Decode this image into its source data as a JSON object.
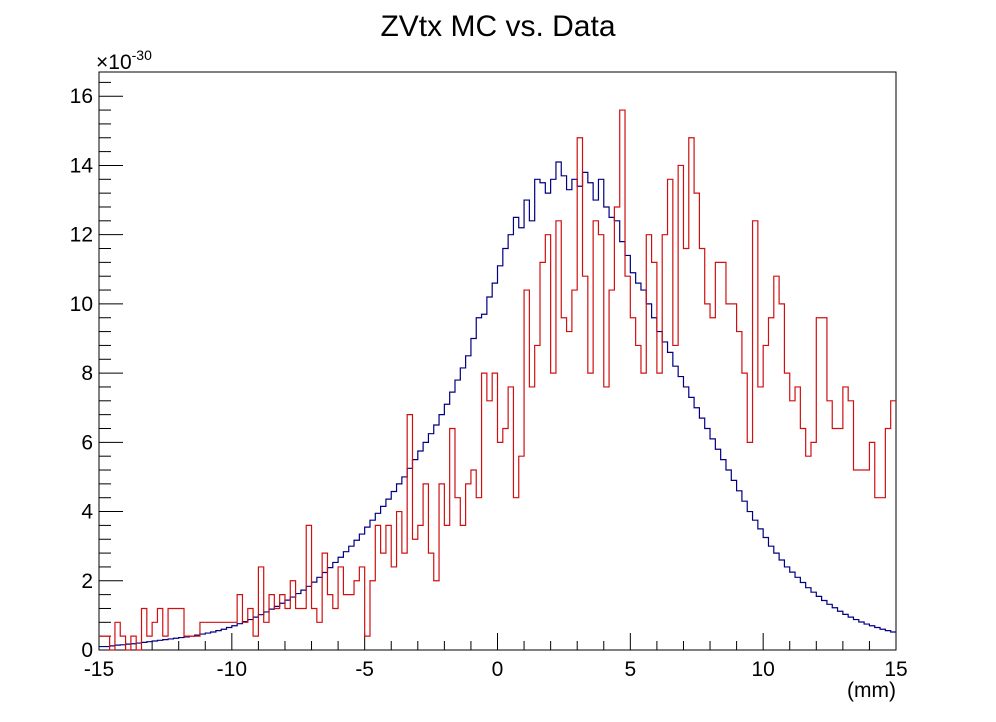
{
  "chart_data": {
    "type": "histogram",
    "title": "ZVtx MC vs. Data",
    "xlabel": "(mm)",
    "ylabel": "",
    "y_multiplier": {
      "base": "×10",
      "exponent": "-30"
    },
    "xlim": [
      -15,
      15
    ],
    "ylim": [
      0,
      16.7
    ],
    "x_ticks": [
      -15,
      -10,
      -5,
      0,
      5,
      10,
      15
    ],
    "y_ticks": [
      0,
      2,
      4,
      6,
      8,
      10,
      12,
      14,
      16
    ],
    "bins": {
      "n": 150,
      "min": -15,
      "max": 15
    },
    "grid": false,
    "legend": "none",
    "series": [
      {
        "color": "#000080",
        "values": [
          0.1,
          0.1,
          0.12,
          0.14,
          0.15,
          0.17,
          0.18,
          0.2,
          0.22,
          0.24,
          0.26,
          0.28,
          0.3,
          0.32,
          0.34,
          0.36,
          0.38,
          0.4,
          0.43,
          0.46,
          0.49,
          0.52,
          0.56,
          0.6,
          0.65,
          0.7,
          0.76,
          0.82,
          0.88,
          0.95,
          1.02,
          1.1,
          1.18,
          1.26,
          1.35,
          1.44,
          1.53,
          1.63,
          1.73,
          1.84,
          1.96,
          2.1,
          2.24,
          2.38,
          2.53,
          2.68,
          2.84,
          3.0,
          3.17,
          3.35,
          3.55,
          3.75,
          3.95,
          4.15,
          4.36,
          4.58,
          4.8,
          5.0,
          5.25,
          5.5,
          5.75,
          6.0,
          6.25,
          6.5,
          6.8,
          7.1,
          7.45,
          7.8,
          8.15,
          8.5,
          9.0,
          9.6,
          9.7,
          10.2,
          10.6,
          11.1,
          11.6,
          12.0,
          12.5,
          12.2,
          13.0,
          12.4,
          13.6,
          13.5,
          13.2,
          13.6,
          14.1,
          13.7,
          13.3,
          13.6,
          13.4,
          13.8,
          13.5,
          13.0,
          13.6,
          12.8,
          12.5,
          12.4,
          11.8,
          11.4,
          10.9,
          10.6,
          10.4,
          10.0,
          9.6,
          9.2,
          8.9,
          8.6,
          8.2,
          7.9,
          7.6,
          7.3,
          7.0,
          6.7,
          6.4,
          6.1,
          5.8,
          5.5,
          5.2,
          4.9,
          4.6,
          4.3,
          4.0,
          3.75,
          3.5,
          3.25,
          3.0,
          2.8,
          2.6,
          2.4,
          2.25,
          2.1,
          1.95,
          1.8,
          1.67,
          1.55,
          1.43,
          1.32,
          1.22,
          1.12,
          1.03,
          0.95,
          0.88,
          0.81,
          0.75,
          0.7,
          0.65,
          0.6,
          0.56,
          0.52,
          0.48,
          0.45
        ]
      },
      {
        "color": "#d01010",
        "values": [
          0.4,
          0.4,
          0.0,
          0.8,
          0.4,
          0.0,
          0.4,
          0.0,
          1.2,
          0.4,
          0.8,
          1.2,
          0.4,
          1.2,
          1.2,
          1.2,
          0.4,
          0.4,
          0.4,
          0.8,
          0.8,
          0.8,
          0.8,
          0.8,
          0.8,
          0.8,
          1.6,
          0.8,
          1.2,
          0.4,
          2.4,
          0.8,
          1.6,
          1.2,
          1.6,
          1.2,
          2.0,
          1.2,
          1.2,
          3.6,
          1.2,
          0.8,
          2.8,
          1.6,
          1.2,
          2.4,
          1.6,
          1.6,
          2.0,
          2.4,
          0.4,
          2.0,
          3.6,
          2.8,
          3.6,
          2.4,
          4.0,
          2.8,
          6.8,
          3.2,
          3.6,
          4.8,
          2.8,
          2.0,
          4.8,
          3.6,
          6.4,
          4.4,
          3.6,
          4.8,
          5.2,
          4.4,
          8.0,
          7.2,
          8.0,
          6.0,
          6.4,
          7.6,
          4.4,
          5.6,
          10.4,
          7.6,
          8.8,
          11.2,
          12.0,
          8.0,
          12.4,
          9.6,
          9.2,
          10.4,
          14.8,
          10.8,
          8.0,
          12.4,
          12.0,
          7.6,
          10.4,
          12.8,
          15.6,
          10.8,
          9.6,
          8.8,
          8.0,
          12.0,
          11.2,
          8.0,
          12.0,
          13.6,
          8.8,
          14.0,
          11.6,
          14.8,
          13.2,
          11.6,
          10.0,
          9.6,
          11.2,
          11.2,
          10.0,
          10.0,
          9.2,
          8.0,
          6.0,
          12.4,
          7.6,
          8.8,
          9.6,
          10.8,
          10.0,
          8.0,
          7.2,
          7.6,
          6.4,
          5.6,
          6.0,
          9.6,
          9.6,
          7.2,
          6.4,
          6.4,
          7.6,
          7.2,
          5.2,
          5.2,
          5.2,
          6.0,
          4.4,
          4.4,
          6.4,
          7.2,
          5.2,
          4.8,
          4.8,
          3.6
        ]
      }
    ]
  }
}
